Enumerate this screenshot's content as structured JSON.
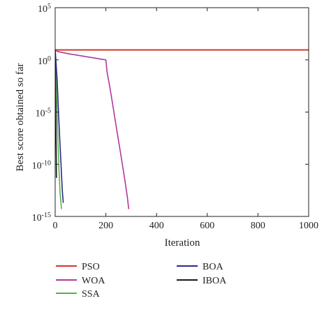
{
  "chart_data": {
    "type": "line",
    "title": "",
    "xlabel": "Iteration",
    "ylabel": "Best score obtained so far",
    "xlim": [
      0,
      1000
    ],
    "ylim_log10": [
      -15,
      5
    ],
    "yscale": "log",
    "x_ticks": [
      "0",
      "200",
      "400",
      "600",
      "800",
      "1000"
    ],
    "y_ticks": [
      {
        "base": "10",
        "exp": "5"
      },
      {
        "base": "10",
        "exp": "0"
      },
      {
        "base": "10",
        "exp": "-5"
      },
      {
        "base": "10",
        "exp": "-10"
      },
      {
        "base": "10",
        "exp": "-15"
      }
    ],
    "grid": false,
    "legend_position": "bottom",
    "series": [
      {
        "name": "PSO",
        "color": "#d6342b",
        "x": [
          0,
          1000
        ],
        "y_log10": [
          0.95,
          0.95
        ]
      },
      {
        "name": "WOA",
        "color": "#b0399b",
        "x": [
          0,
          10,
          50,
          100,
          150,
          200,
          205,
          215,
          225,
          235,
          245,
          255,
          265,
          275,
          285,
          290
        ],
        "y_log10": [
          0.95,
          0.8,
          0.6,
          0.4,
          0.2,
          0.0,
          -1.2,
          -2.5,
          -4.0,
          -5.5,
          -7.0,
          -8.5,
          -10.0,
          -11.5,
          -13.2,
          -14.3
        ]
      },
      {
        "name": "SSA",
        "color": "#5bb04a",
        "x": [
          0,
          5,
          10,
          15,
          20,
          25
        ],
        "y_log10": [
          1.0,
          -3.0,
          -7.0,
          -10.5,
          -13.0,
          -14.3
        ]
      },
      {
        "name": "BOA",
        "color": "#2a2a8a",
        "x": [
          0,
          8,
          15,
          22,
          28,
          32
        ],
        "y_log10": [
          1.0,
          -2.0,
          -6.0,
          -9.5,
          -12.5,
          -13.7
        ]
      },
      {
        "name": "IBOA",
        "color": "#1a1a1a",
        "x": [
          0,
          2,
          4,
          5
        ],
        "y_log10": [
          1.0,
          -4.0,
          -9.0,
          -11.3
        ]
      }
    ]
  }
}
